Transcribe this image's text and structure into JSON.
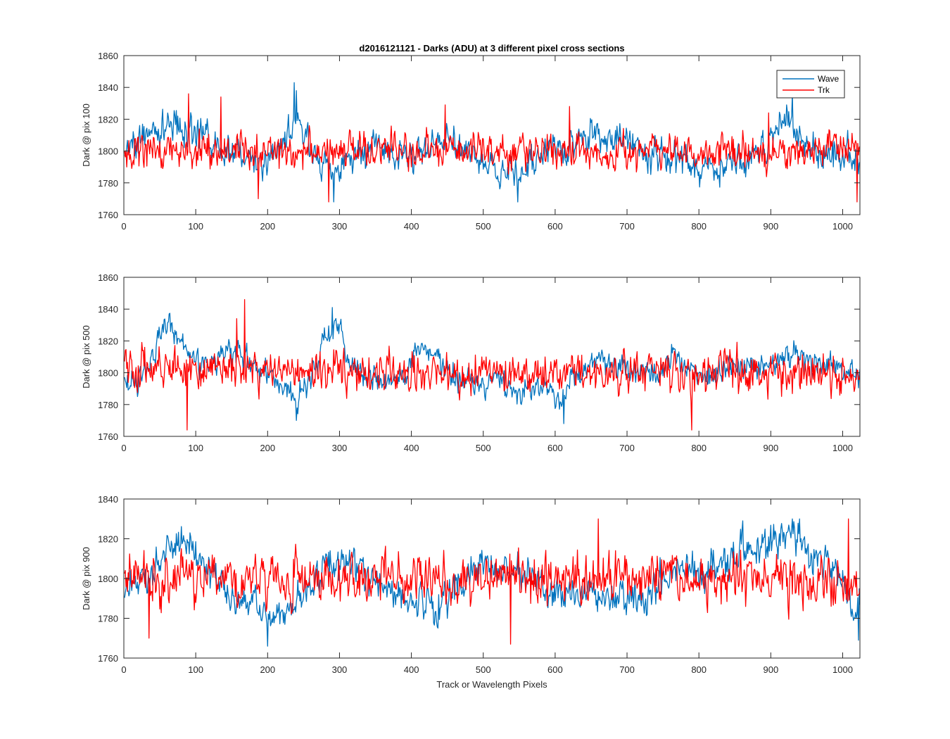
{
  "chart_data": {
    "type": "line",
    "title": "d2016121121 - Darks (ADU) at 3 different pixel cross sections",
    "xlabel": "Track or Wavelength Pixels",
    "legend": {
      "placement": "top-right",
      "entries": [
        "Wave",
        "Trk"
      ]
    },
    "colors": {
      "Wave": "#0072BD",
      "Trk": "#FF0000"
    },
    "grid": false,
    "x_range": [
      0,
      1024
    ],
    "panels": [
      {
        "ylabel": "Dark @ pix 100",
        "ylim": [
          1760,
          1860
        ],
        "yticks": [
          1760,
          1780,
          1800,
          1820,
          1840,
          1860
        ],
        "xticks": [
          0,
          100,
          200,
          300,
          400,
          500,
          600,
          700,
          800,
          900,
          1000
        ],
        "series": [
          {
            "name": "Wave",
            "noise": 7.5,
            "spikes": [
              [
                237,
                1843
              ],
              [
                240,
                1838
              ],
              [
                930,
                1836
              ],
              [
                548,
                1768
              ],
              [
                292,
                1768
              ]
            ],
            "baseline": [
              [
                0,
                1798
              ],
              [
                20,
                1807
              ],
              [
                40,
                1812
              ],
              [
                60,
                1817
              ],
              [
                80,
                1814
              ],
              [
                100,
                1812
              ],
              [
                120,
                1806
              ],
              [
                140,
                1800
              ],
              [
                160,
                1797
              ],
              [
                180,
                1798
              ],
              [
                200,
                1792
              ],
              [
                220,
                1808
              ],
              [
                240,
                1822
              ],
              [
                250,
                1810
              ],
              [
                270,
                1795
              ],
              [
                290,
                1788
              ],
              [
                310,
                1795
              ],
              [
                330,
                1800
              ],
              [
                350,
                1802
              ],
              [
                370,
                1797
              ],
              [
                390,
                1795
              ],
              [
                410,
                1798
              ],
              [
                430,
                1805
              ],
              [
                450,
                1808
              ],
              [
                470,
                1800
              ],
              [
                490,
                1795
              ],
              [
                510,
                1790
              ],
              [
                530,
                1788
              ],
              [
                550,
                1786
              ],
              [
                570,
                1792
              ],
              [
                590,
                1800
              ],
              [
                610,
                1802
              ],
              [
                630,
                1805
              ],
              [
                650,
                1808
              ],
              [
                670,
                1810
              ],
              [
                690,
                1808
              ],
              [
                710,
                1802
              ],
              [
                730,
                1797
              ],
              [
                750,
                1800
              ],
              [
                770,
                1796
              ],
              [
                790,
                1793
              ],
              [
                810,
                1790
              ],
              [
                830,
                1788
              ],
              [
                850,
                1792
              ],
              [
                870,
                1798
              ],
              [
                890,
                1803
              ],
              [
                910,
                1812
              ],
              [
                925,
                1822
              ],
              [
                940,
                1812
              ],
              [
                960,
                1800
              ],
              [
                980,
                1796
              ],
              [
                1000,
                1797
              ],
              [
                1024,
                1796
              ]
            ]
          },
          {
            "name": "Trk",
            "noise": 8,
            "spikes": [
              [
                90,
                1836
              ],
              [
                135,
                1834
              ],
              [
                447,
                1829
              ],
              [
                620,
                1828
              ],
              [
                897,
                1824
              ],
              [
                1020,
                1768
              ],
              [
                285,
                1768
              ],
              [
                187,
                1770
              ]
            ],
            "baseline": [
              [
                0,
                1800
              ],
              [
                200,
                1800
              ],
              [
                400,
                1800
              ],
              [
                600,
                1800
              ],
              [
                800,
                1800
              ],
              [
                1024,
                1800
              ]
            ]
          }
        ]
      },
      {
        "ylabel": "Dark @ pix 500",
        "ylim": [
          1760,
          1860
        ],
        "yticks": [
          1760,
          1780,
          1800,
          1820,
          1840,
          1860
        ],
        "xticks": [
          0,
          100,
          200,
          300,
          400,
          500,
          600,
          700,
          800,
          900,
          1000
        ],
        "series": [
          {
            "name": "Wave",
            "noise": 6,
            "spikes": [
              [
                63,
                1837
              ],
              [
                290,
                1841
              ],
              [
                612,
                1768
              ],
              [
                240,
                1770
              ]
            ],
            "baseline": [
              [
                0,
                1795
              ],
              [
                20,
                1795
              ],
              [
                40,
                1812
              ],
              [
                60,
                1828
              ],
              [
                75,
                1822
              ],
              [
                90,
                1810
              ],
              [
                110,
                1808
              ],
              [
                130,
                1810
              ],
              [
                150,
                1812
              ],
              [
                170,
                1808
              ],
              [
                200,
                1800
              ],
              [
                220,
                1792
              ],
              [
                240,
                1786
              ],
              [
                260,
                1795
              ],
              [
                280,
                1825
              ],
              [
                300,
                1828
              ],
              [
                310,
                1810
              ],
              [
                330,
                1800
              ],
              [
                350,
                1795
              ],
              [
                370,
                1792
              ],
              [
                390,
                1798
              ],
              [
                410,
                1815
              ],
              [
                430,
                1814
              ],
              [
                450,
                1800
              ],
              [
                470,
                1795
              ],
              [
                490,
                1792
              ],
              [
                510,
                1793
              ],
              [
                530,
                1790
              ],
              [
                550,
                1785
              ],
              [
                570,
                1790
              ],
              [
                590,
                1790
              ],
              [
                610,
                1785
              ],
              [
                630,
                1798
              ],
              [
                650,
                1805
              ],
              [
                680,
                1807
              ],
              [
                710,
                1802
              ],
              [
                740,
                1798
              ],
              [
                760,
                1810
              ],
              [
                780,
                1806
              ],
              [
                800,
                1795
              ],
              [
                830,
                1800
              ],
              [
                860,
                1803
              ],
              [
                890,
                1805
              ],
              [
                910,
                1808
              ],
              [
                930,
                1815
              ],
              [
                950,
                1806
              ],
              [
                970,
                1803
              ],
              [
                990,
                1806
              ],
              [
                1010,
                1800
              ],
              [
                1024,
                1798
              ]
            ]
          },
          {
            "name": "Trk",
            "noise": 9,
            "spikes": [
              [
                168,
                1846
              ],
              [
                88,
                1764
              ],
              [
                790,
                1764
              ],
              [
                157,
                1834
              ]
            ],
            "baseline": [
              [
                0,
                1803
              ],
              [
                100,
                1802
              ],
              [
                200,
                1801
              ],
              [
                300,
                1800
              ],
              [
                400,
                1800
              ],
              [
                500,
                1800
              ],
              [
                600,
                1800
              ],
              [
                700,
                1800
              ],
              [
                800,
                1800
              ],
              [
                900,
                1800
              ],
              [
                1024,
                1797
              ]
            ]
          }
        ]
      },
      {
        "ylabel": "Dark @ pix 900",
        "ylim": [
          1760,
          1840
        ],
        "yticks": [
          1760,
          1780,
          1800,
          1820,
          1840
        ],
        "xticks": [
          0,
          100,
          200,
          300,
          400,
          500,
          600,
          700,
          800,
          900,
          1000
        ],
        "series": [
          {
            "name": "Wave",
            "noise": 6.5,
            "spikes": [
              [
                930,
                1830
              ],
              [
                940,
                1830
              ],
              [
                1022,
                1769
              ],
              [
                200,
                1766
              ]
            ],
            "baseline": [
              [
                0,
                1795
              ],
              [
                30,
                1800
              ],
              [
                60,
                1815
              ],
              [
                80,
                1818
              ],
              [
                100,
                1812
              ],
              [
                120,
                1802
              ],
              [
                140,
                1795
              ],
              [
                160,
                1790
              ],
              [
                180,
                1785
              ],
              [
                200,
                1782
              ],
              [
                220,
                1780
              ],
              [
                240,
                1788
              ],
              [
                260,
                1795
              ],
              [
                280,
                1805
              ],
              [
                300,
                1808
              ],
              [
                320,
                1806
              ],
              [
                340,
                1802
              ],
              [
                360,
                1797
              ],
              [
                380,
                1792
              ],
              [
                400,
                1790
              ],
              [
                420,
                1788
              ],
              [
                440,
                1787
              ],
              [
                460,
                1794
              ],
              [
                480,
                1802
              ],
              [
                500,
                1806
              ],
              [
                520,
                1806
              ],
              [
                540,
                1804
              ],
              [
                560,
                1800
              ],
              [
                580,
                1797
              ],
              [
                600,
                1795
              ],
              [
                620,
                1793
              ],
              [
                640,
                1795
              ],
              [
                660,
                1792
              ],
              [
                680,
                1790
              ],
              [
                700,
                1790
              ],
              [
                720,
                1788
              ],
              [
                740,
                1796
              ],
              [
                760,
                1802
              ],
              [
                780,
                1806
              ],
              [
                800,
                1806
              ],
              [
                820,
                1803
              ],
              [
                840,
                1808
              ],
              [
                860,
                1818
              ],
              [
                880,
                1812
              ],
              [
                900,
                1815
              ],
              [
                920,
                1822
              ],
              [
                940,
                1822
              ],
              [
                960,
                1810
              ],
              [
                980,
                1807
              ],
              [
                1000,
                1797
              ],
              [
                1010,
                1790
              ],
              [
                1024,
                1785
              ]
            ]
          },
          {
            "name": "Trk",
            "noise": 9,
            "spikes": [
              [
                660,
                1830
              ],
              [
                1008,
                1830
              ],
              [
                538,
                1767
              ],
              [
                35,
                1770
              ]
            ],
            "baseline": [
              [
                0,
                1800
              ],
              [
                200,
                1800
              ],
              [
                400,
                1800
              ],
              [
                600,
                1800
              ],
              [
                800,
                1800
              ],
              [
                1024,
                1798
              ]
            ]
          }
        ]
      }
    ]
  }
}
